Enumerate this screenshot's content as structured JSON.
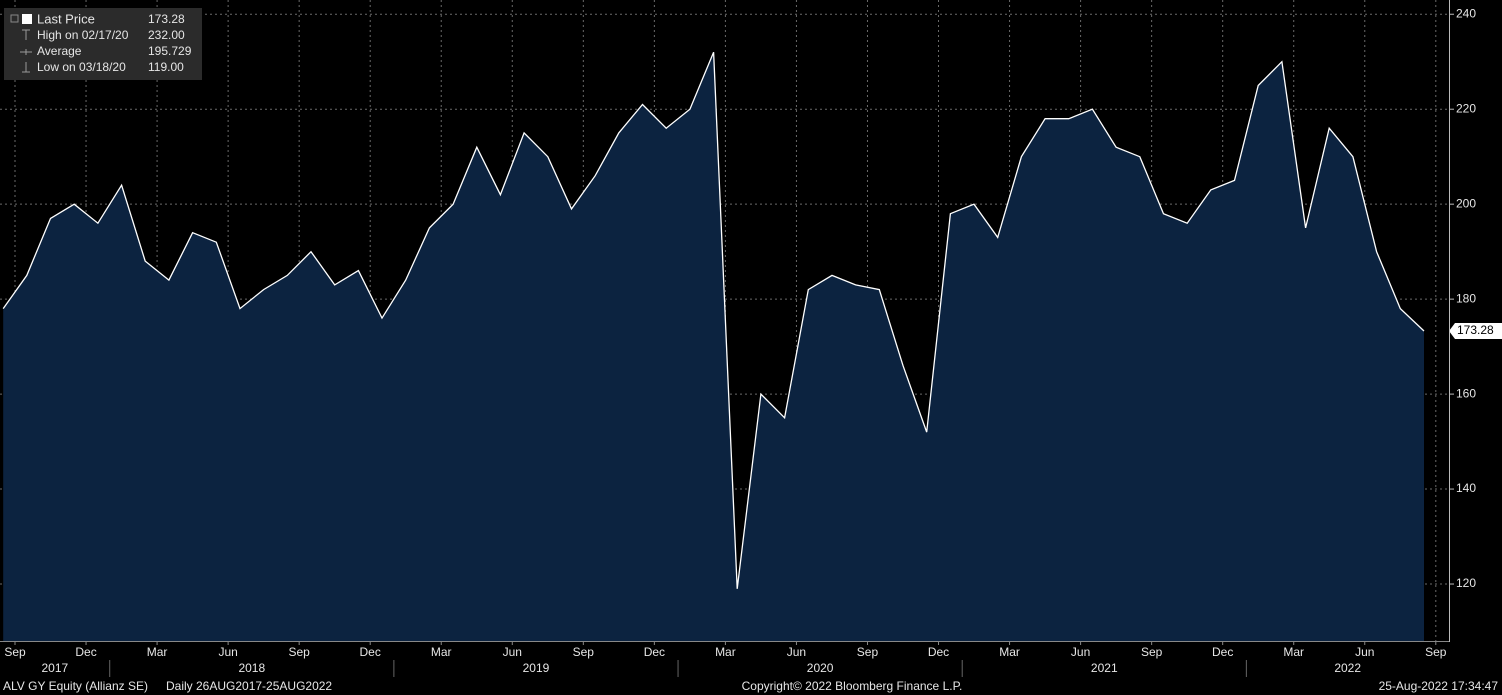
{
  "chart_data": {
    "type": "area",
    "series": [
      {
        "name": "Last Price",
        "color": "#ffffff",
        "fill": "#0c2340",
        "x": [
          "2017-08",
          "2017-09",
          "2017-10",
          "2017-11",
          "2017-12",
          "2018-01",
          "2018-02",
          "2018-03",
          "2018-04",
          "2018-05",
          "2018-06",
          "2018-07",
          "2018-08",
          "2018-09",
          "2018-10",
          "2018-11",
          "2018-12",
          "2019-01",
          "2019-02",
          "2019-03",
          "2019-04",
          "2019-05",
          "2019-06",
          "2019-07",
          "2019-08",
          "2019-09",
          "2019-10",
          "2019-11",
          "2019-12",
          "2020-01",
          "2020-02",
          "2020-03",
          "2020-04",
          "2020-05",
          "2020-06",
          "2020-07",
          "2020-08",
          "2020-09",
          "2020-10",
          "2020-11",
          "2020-12",
          "2021-01",
          "2021-02",
          "2021-03",
          "2021-04",
          "2021-05",
          "2021-06",
          "2021-07",
          "2021-08",
          "2021-09",
          "2021-10",
          "2021-11",
          "2021-12",
          "2022-01",
          "2022-02",
          "2022-03",
          "2022-04",
          "2022-05",
          "2022-06",
          "2022-07",
          "2022-08"
        ],
        "values": [
          178,
          185,
          197,
          200,
          196,
          204,
          188,
          184,
          194,
          192,
          178,
          182,
          185,
          190,
          183,
          186,
          176,
          184,
          195,
          200,
          212,
          202,
          215,
          210,
          199,
          206,
          215,
          221,
          216,
          220,
          232,
          119,
          160,
          155,
          182,
          185,
          183,
          182,
          166,
          152,
          198,
          200,
          193,
          210,
          218,
          218,
          220,
          212,
          210,
          198,
          196,
          203,
          205,
          225,
          230,
          195,
          216,
          210,
          190,
          178,
          173.28
        ]
      }
    ],
    "ylim": [
      108,
      243
    ],
    "yticks": [
      120,
      140,
      160,
      180,
      200,
      220,
      240
    ],
    "grid": true,
    "xticks": [
      {
        "value": "2017-09",
        "label": "Sep"
      },
      {
        "value": "2017-12",
        "label": "Dec"
      },
      {
        "value": "2018-03",
        "label": "Mar"
      },
      {
        "value": "2018-06",
        "label": "Jun"
      },
      {
        "value": "2018-09",
        "label": "Sep"
      },
      {
        "value": "2018-12",
        "label": "Dec"
      },
      {
        "value": "2019-03",
        "label": "Mar"
      },
      {
        "value": "2019-06",
        "label": "Jun"
      },
      {
        "value": "2019-09",
        "label": "Sep"
      },
      {
        "value": "2019-12",
        "label": "Dec"
      },
      {
        "value": "2020-03",
        "label": "Mar"
      },
      {
        "value": "2020-06",
        "label": "Jun"
      },
      {
        "value": "2020-09",
        "label": "Sep"
      },
      {
        "value": "2020-12",
        "label": "Dec"
      },
      {
        "value": "2021-03",
        "label": "Mar"
      },
      {
        "value": "2021-06",
        "label": "Jun"
      },
      {
        "value": "2021-09",
        "label": "Sep"
      },
      {
        "value": "2021-12",
        "label": "Dec"
      },
      {
        "value": "2022-03",
        "label": "Mar"
      },
      {
        "value": "2022-06",
        "label": "Jun"
      },
      {
        "value": "2022-09",
        "label": "Sep"
      }
    ],
    "years": [
      "2017",
      "2018",
      "2019",
      "2020",
      "2021",
      "2022"
    ],
    "legend": [
      {
        "label": "Last Price",
        "value": "173.28"
      },
      {
        "label": "High on 02/17/20",
        "value": "232.00"
      },
      {
        "label": "Average",
        "value": "195.729"
      },
      {
        "label": "Low on 03/18/20",
        "value": "119.00"
      }
    ],
    "footer": {
      "security": "ALV GY Equity (Allianz SE)",
      "range": "Daily 26AUG2017-25AUG2022",
      "copyright": "Copyright© 2022 Bloomberg Finance L.P.",
      "timestamp": "25-Aug-2022 17:34:47"
    }
  }
}
